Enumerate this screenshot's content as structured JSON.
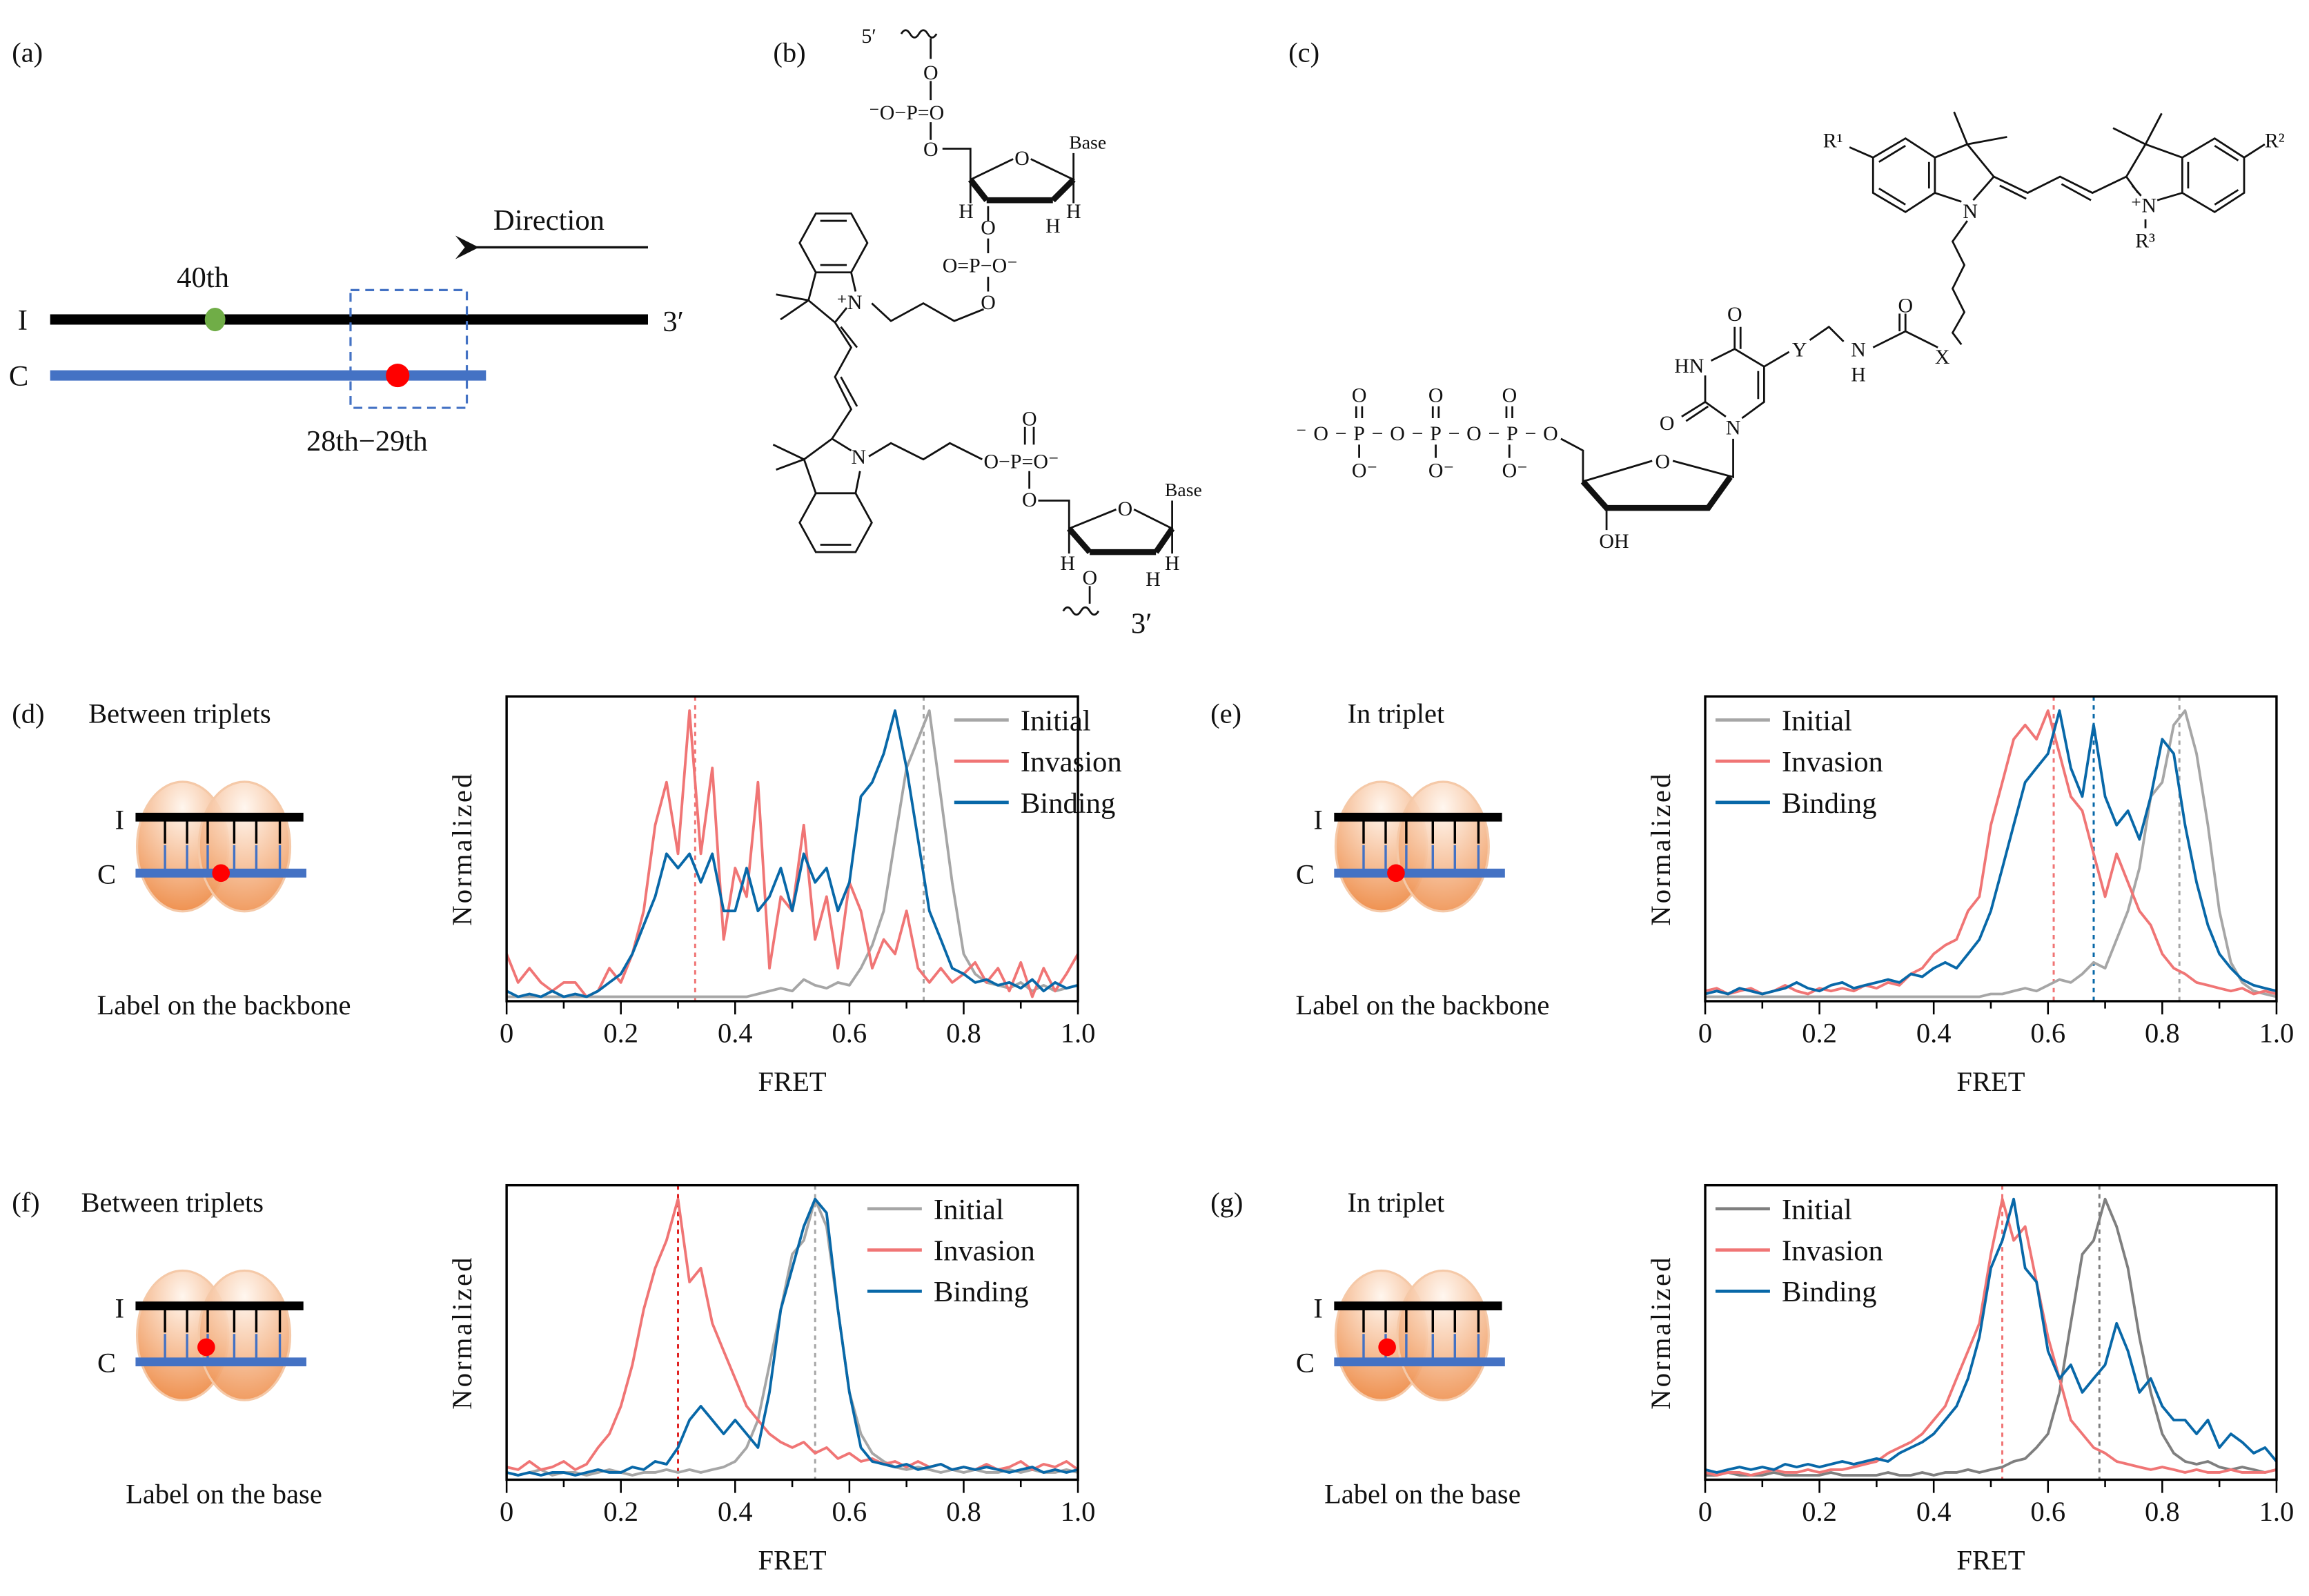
{
  "panel_a": {
    "label": "(a)",
    "direction": "Direction",
    "strand_i": "I",
    "strand_c": "C",
    "end_3": "3′",
    "pos_green": "40th",
    "pos_red": "28th−29th",
    "colors": {
      "strand_i": "#000000",
      "strand_c": "#4472c4",
      "green_dot": "#70ad47",
      "red_dot": "#ff0000",
      "box": "#4472c4"
    }
  },
  "panel_b": {
    "label": "(b)",
    "atoms": [
      "5′",
      "O",
      "⁻O−P=O",
      "O",
      "Base",
      "O",
      "H",
      "H",
      "H",
      "O",
      "O=P−O⁻",
      "O",
      "⁺N",
      "N",
      "O−P=O⁻",
      "O",
      "O",
      "O",
      "Base",
      "H",
      "H",
      "H",
      "O",
      "3′"
    ]
  },
  "panel_c": {
    "label": "(c)",
    "atoms": [
      "R¹",
      "R²",
      "N",
      "⁺N",
      "R³",
      "O",
      "HN",
      "Y",
      "N",
      "H",
      "O",
      "X",
      "O",
      "N",
      "O",
      "OH",
      "⁻O−P−O−P−O−P−O",
      "O",
      "O",
      "O",
      "O⁻",
      "O⁻",
      "O⁻"
    ]
  },
  "schematics": [
    {
      "label": "(d)",
      "title": "Between triplets",
      "strand_i": "I",
      "strand_c": "C",
      "caption": "Label on the backbone",
      "label_site": "backbone"
    },
    {
      "label": "(e)",
      "title": "In triplet",
      "strand_i": "I",
      "strand_c": "C",
      "caption": "Label on the backbone",
      "label_site": "backbone"
    },
    {
      "label": "(f)",
      "title": "Between triplets",
      "strand_i": "I",
      "strand_c": "C",
      "caption": "Label on the base",
      "label_site": "base"
    },
    {
      "label": "(g)",
      "title": "In triplet",
      "strand_i": "I",
      "strand_c": "C",
      "caption": "Label on the base",
      "label_site": "base"
    }
  ],
  "colors": {
    "ellipse": "#f0a060",
    "ellipse_edge": "#f5c9a8",
    "backbone_i": "#000000",
    "backbone_c": "#4472c4",
    "label_dot": "#ff0000"
  },
  "chart_data": [
    {
      "panel": "(d)",
      "type": "line",
      "xlabel": "FRET",
      "ylabel": "Normalized",
      "xlim": [
        0,
        1.0
      ],
      "ylim": [
        0,
        1.05
      ],
      "x_ticks": [
        "0",
        "0.2",
        "0.4",
        "0.6",
        "0.8",
        "1.0"
      ],
      "legend": "top-right",
      "grid": false,
      "x": [
        0,
        0.02,
        0.04,
        0.06,
        0.08,
        0.1,
        0.12,
        0.14,
        0.16,
        0.18,
        0.2,
        0.22,
        0.24,
        0.26,
        0.28,
        0.3,
        0.32,
        0.34,
        0.36,
        0.38,
        0.4,
        0.42,
        0.44,
        0.46,
        0.48,
        0.5,
        0.52,
        0.54,
        0.56,
        0.58,
        0.6,
        0.62,
        0.64,
        0.66,
        0.68,
        0.7,
        0.72,
        0.74,
        0.76,
        0.78,
        0.8,
        0.82,
        0.84,
        0.86,
        0.88,
        0.9,
        0.92,
        0.94,
        0.96,
        0.98,
        1.0
      ],
      "series": [
        {
          "name": "Initial",
          "color": "#a6a6a6",
          "values": [
            0,
            0,
            0,
            0,
            0,
            0,
            0,
            0,
            0,
            0,
            0,
            0,
            0,
            0,
            0,
            0,
            0,
            0,
            0,
            0,
            0,
            0,
            0.01,
            0.02,
            0.03,
            0.02,
            0.06,
            0.04,
            0.03,
            0.05,
            0.04,
            0.1,
            0.18,
            0.3,
            0.55,
            0.8,
            0.9,
            1.0,
            0.7,
            0.4,
            0.15,
            0.08,
            0.05,
            0.04,
            0.03,
            0.05,
            0.02,
            0.04,
            0.02,
            0.03,
            0.04
          ]
        },
        {
          "name": "Invasion",
          "color": "#f07575",
          "values": [
            0.15,
            0.05,
            0.1,
            0.05,
            0.02,
            0.05,
            0.05,
            0,
            0.02,
            0.1,
            0.05,
            0.15,
            0.3,
            0.6,
            0.75,
            0.5,
            1.0,
            0.5,
            0.8,
            0.2,
            0.45,
            0.35,
            0.75,
            0.1,
            0.35,
            0.3,
            0.6,
            0.2,
            0.35,
            0.1,
            0.4,
            0.3,
            0.1,
            0.2,
            0.15,
            0.3,
            0.1,
            0.05,
            0.1,
            0.05,
            0.08,
            0.12,
            0.05,
            0.1,
            0.02,
            0.12,
            0,
            0.1,
            0.02,
            0.08,
            0.15
          ]
        },
        {
          "name": "Binding",
          "color": "#0868a8",
          "values": [
            0.02,
            0,
            0.01,
            0,
            0.02,
            0,
            0.01,
            0,
            0.02,
            0.05,
            0.08,
            0.15,
            0.25,
            0.35,
            0.5,
            0.45,
            0.5,
            0.4,
            0.5,
            0.3,
            0.3,
            0.45,
            0.3,
            0.35,
            0.45,
            0.3,
            0.5,
            0.4,
            0.45,
            0.3,
            0.4,
            0.7,
            0.75,
            0.85,
            1.0,
            0.8,
            0.55,
            0.3,
            0.2,
            0.1,
            0.08,
            0.05,
            0.06,
            0.04,
            0.05,
            0.03,
            0.06,
            0.02,
            0.05,
            0.03,
            0.04
          ]
        }
      ],
      "reference_lines": [
        {
          "x": 0.33,
          "color": "#f07575"
        },
        {
          "x": 0.73,
          "color": "#a6a6a6"
        }
      ]
    },
    {
      "panel": "(e)",
      "type": "line",
      "xlabel": "FRET",
      "ylabel": "Normalized",
      "xlim": [
        0,
        1.0
      ],
      "ylim": [
        0,
        1.05
      ],
      "x_ticks": [
        "0",
        "0.2",
        "0.4",
        "0.6",
        "0.8",
        "1.0"
      ],
      "legend": "top-left",
      "grid": false,
      "x": [
        0,
        0.02,
        0.04,
        0.06,
        0.08,
        0.1,
        0.12,
        0.14,
        0.16,
        0.18,
        0.2,
        0.22,
        0.24,
        0.26,
        0.28,
        0.3,
        0.32,
        0.34,
        0.36,
        0.38,
        0.4,
        0.42,
        0.44,
        0.46,
        0.48,
        0.5,
        0.52,
        0.54,
        0.56,
        0.58,
        0.6,
        0.62,
        0.64,
        0.66,
        0.68,
        0.7,
        0.72,
        0.74,
        0.76,
        0.78,
        0.8,
        0.82,
        0.84,
        0.86,
        0.88,
        0.9,
        0.92,
        0.94,
        0.96,
        0.98,
        1.0
      ],
      "series": [
        {
          "name": "Initial",
          "color": "#a6a6a6",
          "values": [
            0,
            0,
            0,
            0,
            0,
            0,
            0,
            0,
            0,
            0,
            0,
            0,
            0,
            0,
            0,
            0,
            0,
            0,
            0,
            0,
            0,
            0,
            0,
            0,
            0,
            0.01,
            0.01,
            0.02,
            0.03,
            0.02,
            0.04,
            0.06,
            0.05,
            0.08,
            0.12,
            0.1,
            0.2,
            0.3,
            0.45,
            0.7,
            0.75,
            0.95,
            1.0,
            0.85,
            0.6,
            0.3,
            0.12,
            0.05,
            0.02,
            0.01,
            0
          ]
        },
        {
          "name": "Invasion",
          "color": "#f07575",
          "values": [
            0.02,
            0.03,
            0.01,
            0.02,
            0.03,
            0.01,
            0.02,
            0.04,
            0.02,
            0.01,
            0.03,
            0.02,
            0.03,
            0.02,
            0.04,
            0.03,
            0.05,
            0.04,
            0.08,
            0.1,
            0.15,
            0.18,
            0.2,
            0.3,
            0.35,
            0.6,
            0.75,
            0.9,
            0.95,
            0.9,
            1.0,
            0.85,
            0.7,
            0.65,
            0.5,
            0.35,
            0.5,
            0.4,
            0.3,
            0.25,
            0.15,
            0.1,
            0.08,
            0.05,
            0.04,
            0.03,
            0.02,
            0.03,
            0.01,
            0.02,
            0.01
          ]
        },
        {
          "name": "Binding",
          "color": "#0868a8",
          "values": [
            0.01,
            0.02,
            0.01,
            0.03,
            0.02,
            0.01,
            0.02,
            0.03,
            0.05,
            0.03,
            0.02,
            0.04,
            0.05,
            0.03,
            0.04,
            0.05,
            0.06,
            0.05,
            0.08,
            0.07,
            0.1,
            0.12,
            0.1,
            0.15,
            0.2,
            0.3,
            0.45,
            0.6,
            0.75,
            0.8,
            0.85,
            1.0,
            0.8,
            0.7,
            0.95,
            0.7,
            0.6,
            0.65,
            0.55,
            0.7,
            0.9,
            0.85,
            0.6,
            0.4,
            0.25,
            0.15,
            0.1,
            0.06,
            0.04,
            0.03,
            0.02
          ]
        }
      ],
      "reference_lines": [
        {
          "x": 0.61,
          "color": "#f07575"
        },
        {
          "x": 0.68,
          "color": "#0868a8"
        },
        {
          "x": 0.83,
          "color": "#a6a6a6"
        }
      ]
    },
    {
      "panel": "(f)",
      "type": "line",
      "xlabel": "FRET",
      "ylabel": "Normalized",
      "xlim": [
        0,
        1.0
      ],
      "ylim": [
        0,
        1.05
      ],
      "x_ticks": [
        "0",
        "0.2",
        "0.4",
        "0.6",
        "0.8",
        "1.0"
      ],
      "legend": "top-right",
      "grid": false,
      "x": [
        0,
        0.02,
        0.04,
        0.06,
        0.08,
        0.1,
        0.12,
        0.14,
        0.16,
        0.18,
        0.2,
        0.22,
        0.24,
        0.26,
        0.28,
        0.3,
        0.32,
        0.34,
        0.36,
        0.38,
        0.4,
        0.42,
        0.44,
        0.46,
        0.48,
        0.5,
        0.52,
        0.54,
        0.56,
        0.58,
        0.6,
        0.62,
        0.64,
        0.66,
        0.68,
        0.7,
        0.72,
        0.74,
        0.76,
        0.78,
        0.8,
        0.82,
        0.84,
        0.86,
        0.88,
        0.9,
        0.92,
        0.94,
        0.96,
        0.98,
        1.0
      ],
      "series": [
        {
          "name": "Initial",
          "color": "#a6a6a6",
          "values": [
            0.01,
            0,
            0.01,
            0.02,
            0,
            0.01,
            0.01,
            0,
            0.01,
            0.02,
            0.01,
            0,
            0.01,
            0.01,
            0.02,
            0.01,
            0.02,
            0.01,
            0.02,
            0.03,
            0.05,
            0.1,
            0.2,
            0.4,
            0.6,
            0.8,
            0.85,
            1.0,
            0.9,
            0.6,
            0.3,
            0.15,
            0.08,
            0.05,
            0.03,
            0.02,
            0.03,
            0.02,
            0.01,
            0.02,
            0.01,
            0.02,
            0.01,
            0.01,
            0.02,
            0.01,
            0.02,
            0.01,
            0.01,
            0.02,
            0.01
          ]
        },
        {
          "name": "Invasion",
          "color": "#f07575",
          "values": [
            0.03,
            0.02,
            0.05,
            0.02,
            0.03,
            0.05,
            0.02,
            0.04,
            0.1,
            0.15,
            0.25,
            0.4,
            0.6,
            0.75,
            0.85,
            1.0,
            0.7,
            0.75,
            0.55,
            0.45,
            0.35,
            0.25,
            0.2,
            0.15,
            0.12,
            0.1,
            0.12,
            0.08,
            0.1,
            0.06,
            0.08,
            0.05,
            0.06,
            0.04,
            0.05,
            0.03,
            0.05,
            0.03,
            0.04,
            0.02,
            0.03,
            0.02,
            0.04,
            0.02,
            0.03,
            0.05,
            0.02,
            0.04,
            0.03,
            0.05,
            0.02
          ]
        },
        {
          "name": "Binding",
          "color": "#0868a8",
          "values": [
            0.01,
            0,
            0.01,
            0,
            0.01,
            0.01,
            0,
            0.01,
            0.02,
            0.01,
            0.01,
            0.03,
            0.02,
            0.05,
            0.04,
            0.1,
            0.2,
            0.25,
            0.2,
            0.15,
            0.2,
            0.15,
            0.1,
            0.3,
            0.6,
            0.75,
            0.9,
            1.0,
            0.95,
            0.6,
            0.3,
            0.1,
            0.05,
            0.04,
            0.03,
            0.04,
            0.02,
            0.03,
            0.04,
            0.02,
            0.03,
            0.02,
            0.03,
            0.02,
            0.01,
            0.02,
            0.03,
            0.01,
            0.02,
            0.01,
            0.02
          ]
        }
      ],
      "reference_lines": [
        {
          "x": 0.3,
          "color": "#e02020"
        },
        {
          "x": 0.54,
          "color": "#a6a6a6"
        }
      ]
    },
    {
      "panel": "(g)",
      "type": "line",
      "xlabel": "FRET",
      "ylabel": "Normalized",
      "xlim": [
        0,
        1.0
      ],
      "ylim": [
        0,
        1.05
      ],
      "x_ticks": [
        "0",
        "0.2",
        "0.4",
        "0.6",
        "0.8",
        "1.0"
      ],
      "legend": "top-left",
      "grid": false,
      "x": [
        0,
        0.02,
        0.04,
        0.06,
        0.08,
        0.1,
        0.12,
        0.14,
        0.16,
        0.18,
        0.2,
        0.22,
        0.24,
        0.26,
        0.28,
        0.3,
        0.32,
        0.34,
        0.36,
        0.38,
        0.4,
        0.42,
        0.44,
        0.46,
        0.48,
        0.5,
        0.52,
        0.54,
        0.56,
        0.58,
        0.6,
        0.62,
        0.64,
        0.66,
        0.68,
        0.7,
        0.72,
        0.74,
        0.76,
        0.78,
        0.8,
        0.82,
        0.84,
        0.86,
        0.88,
        0.9,
        0.92,
        0.94,
        0.96,
        0.98,
        1.0
      ],
      "series": [
        {
          "name": "Initial",
          "color": "#7f7f7f",
          "values": [
            0,
            0,
            0.01,
            0,
            0,
            0,
            0.01,
            0,
            0,
            0,
            0,
            0.01,
            0,
            0,
            0,
            0,
            0.01,
            0,
            0,
            0.01,
            0,
            0.01,
            0.01,
            0.02,
            0.01,
            0.02,
            0.03,
            0.05,
            0.06,
            0.1,
            0.15,
            0.3,
            0.55,
            0.8,
            0.85,
            1.0,
            0.9,
            0.75,
            0.5,
            0.3,
            0.15,
            0.08,
            0.05,
            0.04,
            0.05,
            0.03,
            0.02,
            0.03,
            0.02,
            0.01,
            0.02
          ]
        },
        {
          "name": "Invasion",
          "color": "#f07575",
          "values": [
            0.01,
            0,
            0.01,
            0.01,
            0,
            0.01,
            0.02,
            0.01,
            0.01,
            0.02,
            0.01,
            0.02,
            0.02,
            0.03,
            0.04,
            0.05,
            0.08,
            0.1,
            0.12,
            0.15,
            0.2,
            0.25,
            0.35,
            0.45,
            0.55,
            0.8,
            1.0,
            0.85,
            0.9,
            0.7,
            0.5,
            0.35,
            0.2,
            0.15,
            0.1,
            0.08,
            0.05,
            0.04,
            0.03,
            0.02,
            0.03,
            0.02,
            0.01,
            0.02,
            0.01,
            0.01,
            0.02,
            0.01,
            0.01,
            0.01,
            0.02
          ]
        },
        {
          "name": "Binding",
          "color": "#0868a8",
          "values": [
            0.02,
            0.01,
            0.02,
            0.03,
            0.02,
            0.03,
            0.02,
            0.04,
            0.03,
            0.04,
            0.03,
            0.04,
            0.05,
            0.04,
            0.05,
            0.06,
            0.05,
            0.08,
            0.1,
            0.12,
            0.15,
            0.2,
            0.25,
            0.35,
            0.5,
            0.75,
            0.85,
            1.0,
            0.75,
            0.7,
            0.45,
            0.35,
            0.4,
            0.3,
            0.35,
            0.4,
            0.55,
            0.45,
            0.3,
            0.35,
            0.25,
            0.2,
            0.2,
            0.15,
            0.2,
            0.1,
            0.15,
            0.12,
            0.08,
            0.1,
            0.05
          ]
        }
      ],
      "reference_lines": [
        {
          "x": 0.52,
          "color": "#f07575"
        },
        {
          "x": 0.69,
          "color": "#7f7f7f"
        }
      ]
    }
  ]
}
